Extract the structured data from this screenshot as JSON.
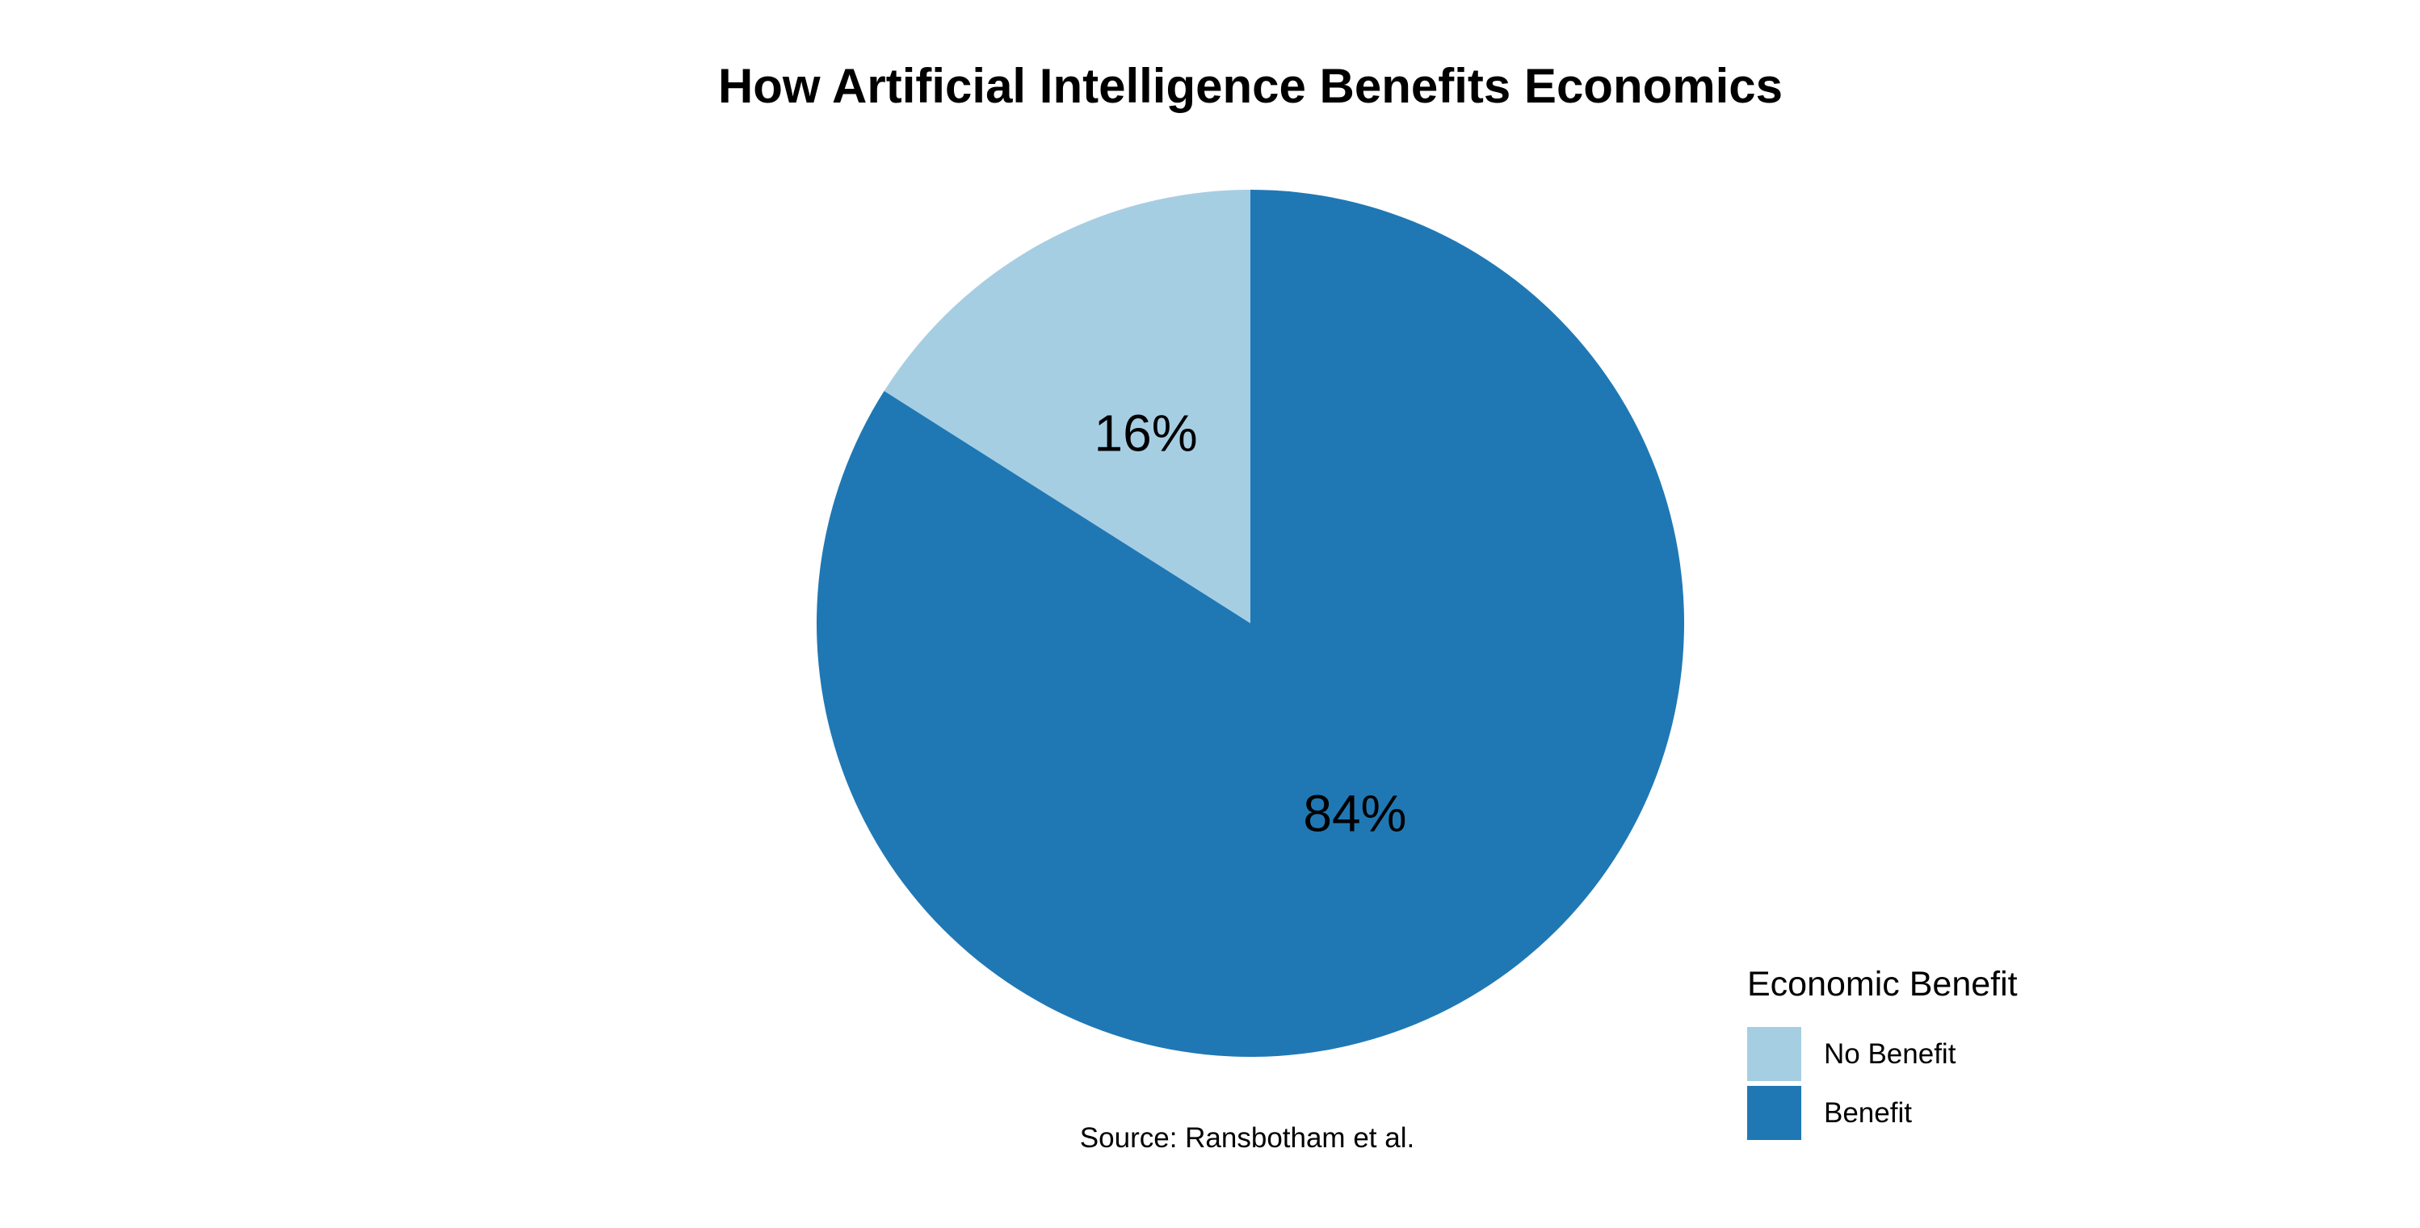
{
  "chart_data": {
    "type": "pie",
    "title": "How Artificial Intelligence Benefits Economics",
    "caption": "Source: Ransbotham et al.",
    "legend": {
      "title": "Economic Benefit",
      "placement": "bottom-right"
    },
    "slices": [
      {
        "label": "No Benefit",
        "value": 16,
        "display": "16%",
        "color": "#a6cee3"
      },
      {
        "label": "Benefit",
        "value": 84,
        "display": "84%",
        "color": "#1f78b4"
      }
    ],
    "start_angle": "12 o'clock",
    "direction": "counterclockwise"
  }
}
